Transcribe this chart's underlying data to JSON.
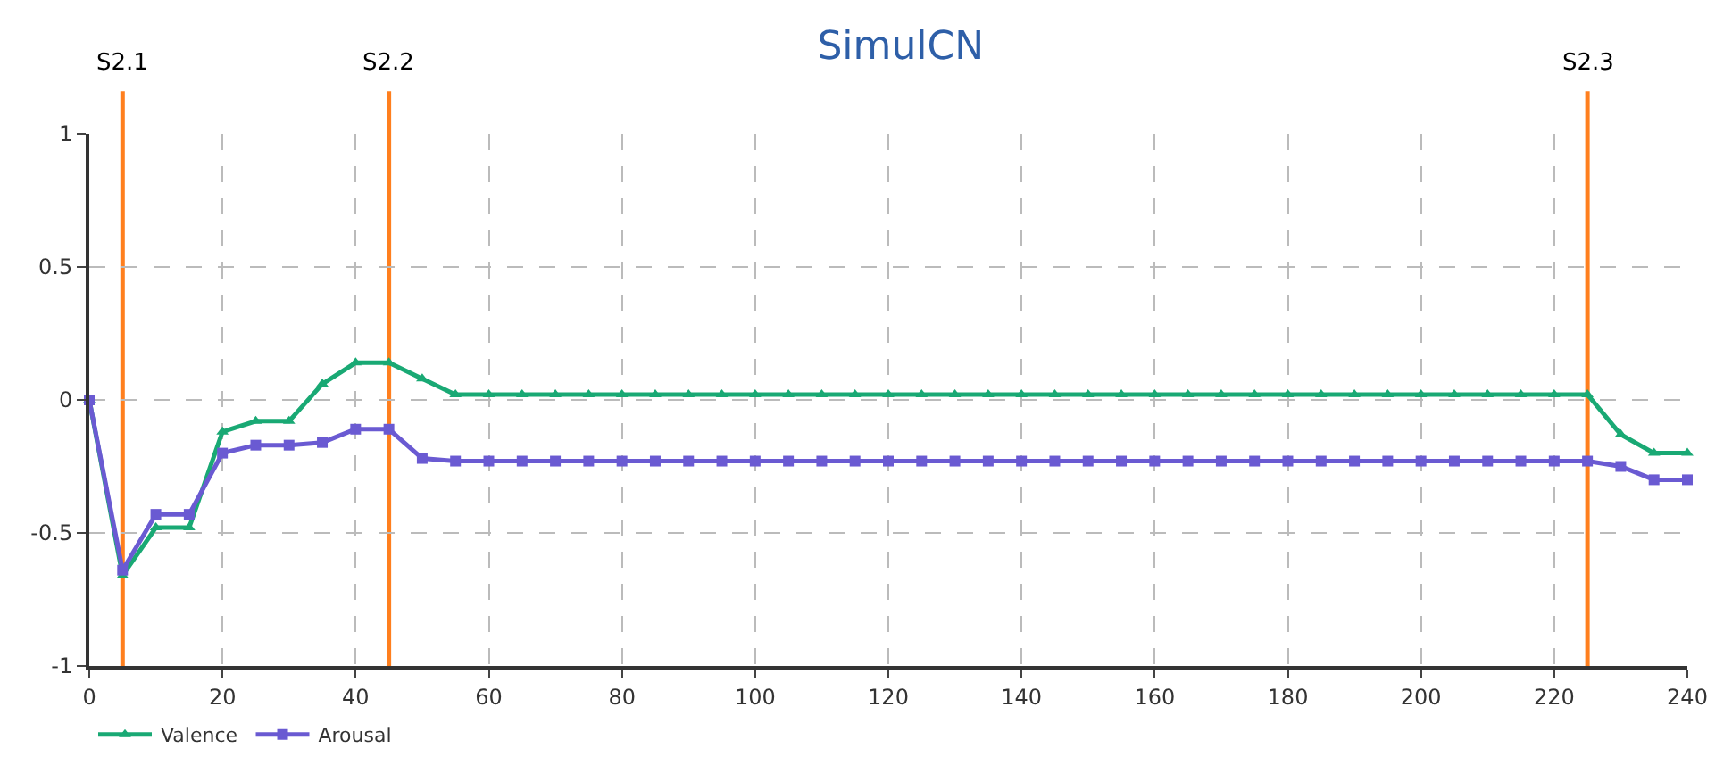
{
  "chart_data": {
    "type": "line",
    "title": "SimulCN",
    "x": [
      0,
      5,
      10,
      15,
      20,
      25,
      30,
      35,
      40,
      45,
      50,
      55,
      60,
      65,
      70,
      75,
      80,
      85,
      90,
      95,
      100,
      105,
      110,
      115,
      120,
      125,
      130,
      135,
      140,
      145,
      150,
      155,
      160,
      165,
      170,
      175,
      180,
      185,
      190,
      195,
      200,
      205,
      210,
      215,
      220,
      225,
      230,
      235,
      240
    ],
    "series": [
      {
        "name": "Valence",
        "color": "#19a974",
        "marker": "triangle",
        "values": [
          0,
          -0.66,
          -0.48,
          -0.48,
          -0.12,
          -0.08,
          -0.08,
          0.06,
          0.14,
          0.14,
          0.08,
          0.02,
          0.02,
          0.02,
          0.02,
          0.02,
          0.02,
          0.02,
          0.02,
          0.02,
          0.02,
          0.02,
          0.02,
          0.02,
          0.02,
          0.02,
          0.02,
          0.02,
          0.02,
          0.02,
          0.02,
          0.02,
          0.02,
          0.02,
          0.02,
          0.02,
          0.02,
          0.02,
          0.02,
          0.02,
          0.02,
          0.02,
          0.02,
          0.02,
          0.02,
          0.02,
          -0.13,
          -0.2,
          -0.2
        ]
      },
      {
        "name": "Arousal",
        "color": "#6a5ad2",
        "marker": "square",
        "values": [
          0,
          -0.64,
          -0.43,
          -0.43,
          -0.2,
          -0.17,
          -0.17,
          -0.16,
          -0.11,
          -0.11,
          -0.22,
          -0.23,
          -0.23,
          -0.23,
          -0.23,
          -0.23,
          -0.23,
          -0.23,
          -0.23,
          -0.23,
          -0.23,
          -0.23,
          -0.23,
          -0.23,
          -0.23,
          -0.23,
          -0.23,
          -0.23,
          -0.23,
          -0.23,
          -0.23,
          -0.23,
          -0.23,
          -0.23,
          -0.23,
          -0.23,
          -0.23,
          -0.23,
          -0.23,
          -0.23,
          -0.23,
          -0.23,
          -0.23,
          -0.23,
          -0.23,
          -0.23,
          -0.25,
          -0.3,
          -0.3
        ]
      }
    ],
    "xlim": [
      0,
      240
    ],
    "xticks": [
      0,
      20,
      40,
      60,
      80,
      100,
      120,
      140,
      160,
      180,
      200,
      220,
      240
    ],
    "ylim": [
      -1,
      1
    ],
    "yticks": [
      -1,
      -0.5,
      0,
      0.5,
      1
    ],
    "ref_lines": [
      {
        "axis": "x",
        "value": 5,
        "label": "S2.1",
        "color": "#ff7f1e"
      },
      {
        "axis": "x",
        "value": 45,
        "label": "S2.2",
        "color": "#ff7f1e"
      },
      {
        "axis": "x",
        "value": 225,
        "label": "S2.3",
        "color": "#ff7f1e"
      }
    ],
    "grid": true,
    "legend": "bottom left",
    "line_style": "solid"
  }
}
